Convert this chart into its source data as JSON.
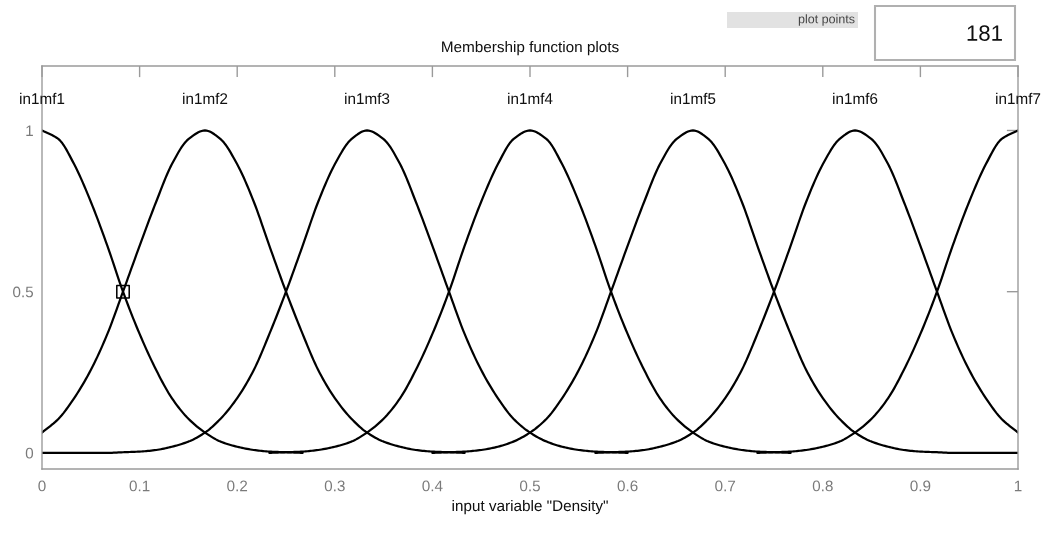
{
  "chart_data": {
    "type": "line",
    "title": "Membership function plots",
    "xlabel": "input variable \"Density\"",
    "annotations": [
      "plot points",
      "181"
    ],
    "xlim": [
      0,
      1
    ],
    "ylim": [
      -0.05,
      1.2
    ],
    "xticks": [
      0,
      0.1,
      0.2,
      0.3,
      0.4,
      0.5,
      0.6,
      0.7,
      0.8,
      0.9,
      1
    ],
    "yticks": [
      0,
      0.5,
      1
    ],
    "line_style": "solid",
    "series": [
      {
        "name": "in1mf1",
        "color": "#000000",
        "x": [
          0,
          0.017,
          0.033,
          0.05,
          0.067,
          0.083,
          0.1,
          0.117,
          0.133,
          0.15,
          0.167,
          0.183,
          0.2,
          0.217,
          0.233,
          0.25,
          0.267
        ],
        "values": [
          1,
          0.973,
          0.895,
          0.779,
          0.642,
          0.5,
          0.369,
          0.257,
          0.17,
          0.106,
          0.063,
          0.035,
          0.019,
          0.009,
          0.004,
          0.002,
          0
        ]
      },
      {
        "name": "in1mf2",
        "color": "#000000",
        "x": [
          0,
          0.017,
          0.033,
          0.05,
          0.067,
          0.083,
          0.1,
          0.117,
          0.133,
          0.15,
          0.167,
          0.183,
          0.2,
          0.217,
          0.233,
          0.25,
          0.267,
          0.283,
          0.3,
          0.317,
          0.333,
          0.35,
          0.367,
          0.383,
          0.4,
          0.417,
          0.433
        ],
        "values": [
          0.063,
          0.106,
          0.17,
          0.257,
          0.369,
          0.5,
          0.642,
          0.779,
          0.895,
          0.973,
          1,
          0.973,
          0.895,
          0.779,
          0.642,
          0.5,
          0.369,
          0.257,
          0.17,
          0.106,
          0.063,
          0.035,
          0.019,
          0.009,
          0.004,
          0.002,
          0
        ]
      },
      {
        "name": "in1mf3",
        "color": "#000000",
        "x": [
          0,
          0.067,
          0.083,
          0.1,
          0.117,
          0.133,
          0.15,
          0.167,
          0.183,
          0.2,
          0.217,
          0.233,
          0.25,
          0.267,
          0.283,
          0.3,
          0.317,
          0.333,
          0.35,
          0.367,
          0.383,
          0.4,
          0.417,
          0.433,
          0.45,
          0.467,
          0.483,
          0.5,
          0.517,
          0.533,
          0.55,
          0.567,
          0.583,
          0.6
        ],
        "values": [
          0,
          0,
          0.002,
          0.004,
          0.009,
          0.019,
          0.035,
          0.063,
          0.106,
          0.17,
          0.257,
          0.369,
          0.5,
          0.642,
          0.779,
          0.895,
          0.973,
          1,
          0.973,
          0.895,
          0.779,
          0.642,
          0.5,
          0.369,
          0.257,
          0.17,
          0.106,
          0.063,
          0.035,
          0.019,
          0.009,
          0.004,
          0.002,
          0
        ]
      },
      {
        "name": "in1mf4",
        "color": "#000000",
        "x": [
          0.233,
          0.25,
          0.267,
          0.283,
          0.3,
          0.317,
          0.333,
          0.35,
          0.367,
          0.383,
          0.4,
          0.417,
          0.433,
          0.45,
          0.467,
          0.483,
          0.5,
          0.517,
          0.533,
          0.55,
          0.567,
          0.583,
          0.6,
          0.617,
          0.633,
          0.65,
          0.667,
          0.683,
          0.7,
          0.717,
          0.733,
          0.75,
          0.767
        ],
        "values": [
          0,
          0.002,
          0.004,
          0.009,
          0.019,
          0.035,
          0.063,
          0.106,
          0.17,
          0.257,
          0.369,
          0.5,
          0.642,
          0.779,
          0.895,
          0.973,
          1,
          0.973,
          0.895,
          0.779,
          0.642,
          0.5,
          0.369,
          0.257,
          0.17,
          0.106,
          0.063,
          0.035,
          0.019,
          0.009,
          0.004,
          0.002,
          0
        ]
      },
      {
        "name": "in1mf5",
        "color": "#000000",
        "x": [
          0.4,
          0.417,
          0.433,
          0.45,
          0.467,
          0.483,
          0.5,
          0.517,
          0.533,
          0.55,
          0.567,
          0.583,
          0.6,
          0.617,
          0.633,
          0.65,
          0.667,
          0.683,
          0.7,
          0.717,
          0.733,
          0.75,
          0.767,
          0.783,
          0.8,
          0.817,
          0.833,
          0.85,
          0.867,
          0.883,
          0.9,
          0.917,
          0.933,
          1
        ],
        "values": [
          0,
          0.002,
          0.004,
          0.009,
          0.019,
          0.035,
          0.063,
          0.106,
          0.17,
          0.257,
          0.369,
          0.5,
          0.642,
          0.779,
          0.895,
          0.973,
          1,
          0.973,
          0.895,
          0.779,
          0.642,
          0.5,
          0.369,
          0.257,
          0.17,
          0.106,
          0.063,
          0.035,
          0.019,
          0.009,
          0.004,
          0.002,
          0,
          0
        ]
      },
      {
        "name": "in1mf6",
        "color": "#000000",
        "x": [
          0.567,
          0.583,
          0.6,
          0.617,
          0.633,
          0.65,
          0.667,
          0.683,
          0.7,
          0.717,
          0.733,
          0.75,
          0.767,
          0.783,
          0.8,
          0.817,
          0.833,
          0.85,
          0.867,
          0.883,
          0.9,
          0.917,
          0.933,
          0.95,
          0.967,
          0.983,
          1
        ],
        "values": [
          0,
          0.002,
          0.004,
          0.009,
          0.019,
          0.035,
          0.063,
          0.106,
          0.17,
          0.257,
          0.369,
          0.5,
          0.642,
          0.779,
          0.895,
          0.973,
          1,
          0.973,
          0.895,
          0.779,
          0.642,
          0.5,
          0.369,
          0.257,
          0.17,
          0.106,
          0.063
        ]
      },
      {
        "name": "in1mf7",
        "color": "#000000",
        "x": [
          0.733,
          0.75,
          0.767,
          0.783,
          0.8,
          0.817,
          0.833,
          0.85,
          0.867,
          0.883,
          0.9,
          0.917,
          0.933,
          0.95,
          0.967,
          0.983,
          1
        ],
        "values": [
          0,
          0.002,
          0.004,
          0.009,
          0.019,
          0.035,
          0.063,
          0.106,
          0.17,
          0.257,
          0.369,
          0.5,
          0.642,
          0.779,
          0.895,
          0.973,
          1
        ]
      },
      {
        "type": "scatter",
        "marker": "square",
        "color": "#000000",
        "x": [
          0.083
        ],
        "values": [
          0.5
        ]
      }
    ]
  }
}
